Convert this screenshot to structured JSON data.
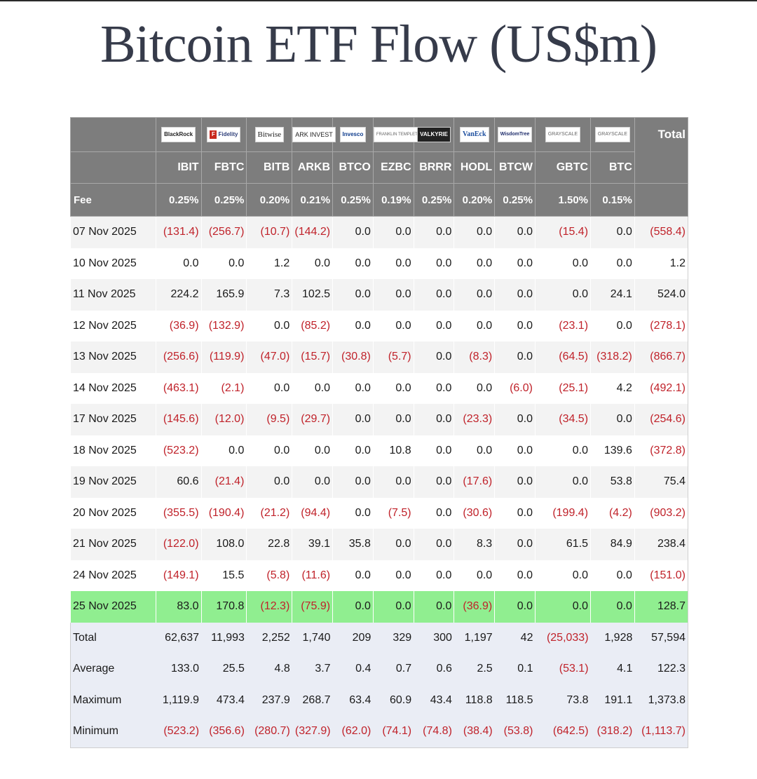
{
  "title": "Bitcoin ETF Flow (US$m)",
  "columns": {
    "total_label": "Total",
    "fee_label": "Fee",
    "issuers": [
      {
        "logo": "BlackRock",
        "ticker": "IBIT",
        "fee": "0.25%"
      },
      {
        "logo": "Fidelity",
        "ticker": "FBTC",
        "fee": "0.25%"
      },
      {
        "logo": "Bitwise",
        "ticker": "BITB",
        "fee": "0.20%"
      },
      {
        "logo": "ARK INVEST",
        "ticker": "ARKB",
        "fee": "0.21%"
      },
      {
        "logo": "Invesco",
        "ticker": "BTCO",
        "fee": "0.25%"
      },
      {
        "logo": "FRANKLIN TEMPLETON",
        "ticker": "EZBC",
        "fee": "0.19%"
      },
      {
        "logo": "VALKYRIE",
        "ticker": "BRRR",
        "fee": "0.25%"
      },
      {
        "logo": "VanEck",
        "ticker": "HODL",
        "fee": "0.20%"
      },
      {
        "logo": "WisdomTree",
        "ticker": "BTCW",
        "fee": "0.25%"
      },
      {
        "logo": "GRAYSCALE",
        "ticker": "GBTC",
        "fee": "1.50%"
      },
      {
        "logo": "GRAYSCALE",
        "ticker": "BTC",
        "fee": "0.15%"
      }
    ]
  },
  "rows": [
    {
      "date": "07 Nov 2025",
      "values": [
        "(131.4)",
        "(256.7)",
        "(10.7)",
        "(144.2)",
        "0.0",
        "0.0",
        "0.0",
        "0.0",
        "0.0",
        "(15.4)",
        "0.0",
        "(558.4)"
      ]
    },
    {
      "date": "10 Nov 2025",
      "values": [
        "0.0",
        "0.0",
        "1.2",
        "0.0",
        "0.0",
        "0.0",
        "0.0",
        "0.0",
        "0.0",
        "0.0",
        "0.0",
        "1.2"
      ]
    },
    {
      "date": "11 Nov 2025",
      "values": [
        "224.2",
        "165.9",
        "7.3",
        "102.5",
        "0.0",
        "0.0",
        "0.0",
        "0.0",
        "0.0",
        "0.0",
        "24.1",
        "524.0"
      ]
    },
    {
      "date": "12 Nov 2025",
      "values": [
        "(36.9)",
        "(132.9)",
        "0.0",
        "(85.2)",
        "0.0",
        "0.0",
        "0.0",
        "0.0",
        "0.0",
        "(23.1)",
        "0.0",
        "(278.1)"
      ]
    },
    {
      "date": "13 Nov 2025",
      "values": [
        "(256.6)",
        "(119.9)",
        "(47.0)",
        "(15.7)",
        "(30.8)",
        "(5.7)",
        "0.0",
        "(8.3)",
        "0.0",
        "(64.5)",
        "(318.2)",
        "(866.7)"
      ]
    },
    {
      "date": "14 Nov 2025",
      "values": [
        "(463.1)",
        "(2.1)",
        "0.0",
        "0.0",
        "0.0",
        "0.0",
        "0.0",
        "0.0",
        "(6.0)",
        "(25.1)",
        "4.2",
        "(492.1)"
      ]
    },
    {
      "date": "17 Nov 2025",
      "values": [
        "(145.6)",
        "(12.0)",
        "(9.5)",
        "(29.7)",
        "0.0",
        "0.0",
        "0.0",
        "(23.3)",
        "0.0",
        "(34.5)",
        "0.0",
        "(254.6)"
      ]
    },
    {
      "date": "18 Nov 2025",
      "values": [
        "(523.2)",
        "0.0",
        "0.0",
        "0.0",
        "0.0",
        "10.8",
        "0.0",
        "0.0",
        "0.0",
        "0.0",
        "139.6",
        "(372.8)"
      ]
    },
    {
      "date": "19 Nov 2025",
      "values": [
        "60.6",
        "(21.4)",
        "0.0",
        "0.0",
        "0.0",
        "0.0",
        "0.0",
        "(17.6)",
        "0.0",
        "0.0",
        "53.8",
        "75.4"
      ]
    },
    {
      "date": "20 Nov 2025",
      "values": [
        "(355.5)",
        "(190.4)",
        "(21.2)",
        "(94.4)",
        "0.0",
        "(7.5)",
        "0.0",
        "(30.6)",
        "0.0",
        "(199.4)",
        "(4.2)",
        "(903.2)"
      ]
    },
    {
      "date": "21 Nov 2025",
      "values": [
        "(122.0)",
        "108.0",
        "22.8",
        "39.1",
        "35.8",
        "0.0",
        "0.0",
        "8.3",
        "0.0",
        "61.5",
        "84.9",
        "238.4"
      ]
    },
    {
      "date": "24 Nov 2025",
      "values": [
        "(149.1)",
        "15.5",
        "(5.8)",
        "(11.6)",
        "0.0",
        "0.0",
        "0.0",
        "0.0",
        "0.0",
        "0.0",
        "0.0",
        "(151.0)"
      ]
    },
    {
      "date": "25 Nov 2025",
      "highlight": true,
      "values": [
        "83.0",
        "170.8",
        "(12.3)",
        "(75.9)",
        "0.0",
        "0.0",
        "0.0",
        "(36.9)",
        "0.0",
        "0.0",
        "0.0",
        "128.7"
      ]
    }
  ],
  "summary": [
    {
      "label": "Total",
      "values": [
        "62,637",
        "11,993",
        "2,252",
        "1,740",
        "209",
        "329",
        "300",
        "1,197",
        "42",
        "(25,033)",
        "1,928",
        "57,594"
      ]
    },
    {
      "label": "Average",
      "values": [
        "133.0",
        "25.5",
        "4.8",
        "3.7",
        "0.4",
        "0.7",
        "0.6",
        "2.5",
        "0.1",
        "(53.1)",
        "4.1",
        "122.3"
      ]
    },
    {
      "label": "Maximum",
      "values": [
        "1,119.9",
        "473.4",
        "237.9",
        "268.7",
        "63.4",
        "60.9",
        "43.4",
        "118.8",
        "118.5",
        "73.8",
        "191.1",
        "1,373.8"
      ]
    },
    {
      "label": "Minimum",
      "values": [
        "(523.2)",
        "(356.6)",
        "(280.7)",
        "(327.9)",
        "(62.0)",
        "(74.1)",
        "(74.8)",
        "(38.4)",
        "(53.8)",
        "(642.5)",
        "(318.2)",
        "(1,113.7)"
      ]
    }
  ],
  "colors": {
    "header_bg": "#7d7d7d",
    "negative": "#c0222a",
    "highlight_row": "#90ee90",
    "stripe": "#f3f3f3",
    "summary_bg": "#eaedf5"
  }
}
